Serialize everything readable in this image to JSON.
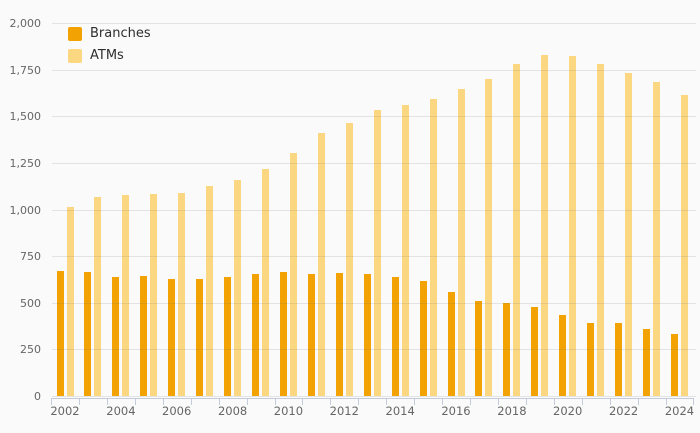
{
  "chart_data": {
    "type": "bar",
    "title": "",
    "xlabel": "",
    "ylabel": "",
    "categories": [
      2002,
      2003,
      2004,
      2005,
      2006,
      2007,
      2008,
      2009,
      2010,
      2011,
      2012,
      2013,
      2014,
      2015,
      2016,
      2017,
      2018,
      2019,
      2020,
      2021,
      2022,
      2023,
      2024
    ],
    "series": [
      {
        "name": "Branches",
        "color": "#F2A303",
        "values": [
          670,
          665,
          641,
          643,
          628,
          630,
          641,
          655,
          665,
          652,
          658,
          652,
          637,
          616,
          558,
          510,
          498,
          477,
          434,
          391,
          394,
          357,
          334
        ]
      },
      {
        "name": "ATMs",
        "color": "#FBD782",
        "values": [
          1012,
          1066,
          1076,
          1082,
          1090,
          1126,
          1160,
          1218,
          1302,
          1410,
          1466,
          1532,
          1562,
          1594,
          1648,
          1700,
          1782,
          1830,
          1822,
          1782,
          1734,
          1682,
          1614
        ]
      }
    ],
    "ylim": [
      0,
      2000
    ],
    "y_tick_step": 250,
    "y_tick_labels": [
      "0",
      "250",
      "500",
      "750",
      "1,000",
      "1,250",
      "1,500",
      "1,750",
      "2,000"
    ],
    "x_tick_labels": [
      "2002",
      "2004",
      "2006",
      "2008",
      "2010",
      "2012",
      "2014",
      "2016",
      "2018",
      "2020",
      "2022",
      "2024"
    ],
    "legend_position": "top-left",
    "grid": "horizontal"
  },
  "colors": {
    "background": "#FAFAFA",
    "gridline": "#E9E9E9",
    "axis": "#C3CBDD",
    "tick_label": "#666666",
    "legend_text": "#2E2E2E"
  }
}
